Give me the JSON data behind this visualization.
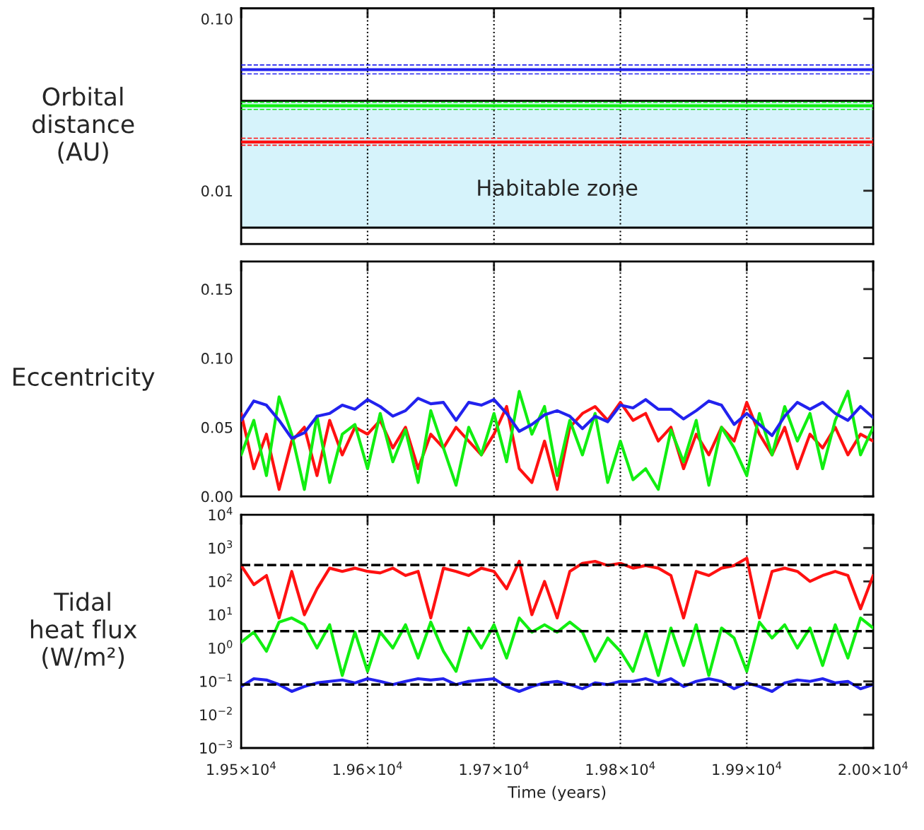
{
  "chart_data": [
    {
      "type": "line",
      "ylabel": "Orbital\ndistance\n(AU)",
      "log": "y",
      "xlim": [
        19500,
        20000
      ],
      "xticks": [
        {
          "value": 19500,
          "label": null
        },
        {
          "value": 19600,
          "label": null
        },
        {
          "value": 19700,
          "label": null
        },
        {
          "value": 19800,
          "label": null
        },
        {
          "value": 19900,
          "label": null
        },
        {
          "value": 20000,
          "label": null
        }
      ],
      "tick_labels": "y",
      "ylim": [
        0.0049,
        0.115
      ],
      "yticks": [
        0.01,
        {
          "value": 0.1,
          "label": "0.10"
        }
      ],
      "grid": false,
      "legend": false,
      "x": [
        19500,
        20000
      ],
      "series": [
        {
          "color": "#2222ee",
          "values": [
            0.0506,
            0.0506
          ],
          "line_style": "solid"
        },
        {
          "color": "#2222ee",
          "values": [
            0.0539,
            0.0539
          ],
          "line_style": "dashed"
        },
        {
          "color": "#2222ee",
          "values": [
            0.0478,
            0.0478
          ],
          "line_style": "dashed"
        },
        {
          "color": "#11ee11",
          "values": [
            0.0312,
            0.0312
          ],
          "line_style": "solid"
        },
        {
          "color": "#11ee11",
          "values": [
            0.0327,
            0.0327
          ],
          "line_style": "dashed"
        },
        {
          "color": "#11ee11",
          "values": [
            0.0297,
            0.0297
          ],
          "line_style": "dashed"
        },
        {
          "color": "#ff1111",
          "values": [
            0.0192,
            0.0192
          ],
          "line_style": "solid"
        },
        {
          "color": "#ff1111",
          "values": [
            0.0202,
            0.0202
          ],
          "line_style": "dashed"
        },
        {
          "color": "#ff1111",
          "values": [
            0.0184,
            0.0184
          ],
          "line_style": "dashed"
        }
      ],
      "bands": [
        {
          "axis": "y",
          "from": 0.0061,
          "to": 0.0333,
          "label": "Habitable zone",
          "color": "#d6f3fb"
        }
      ],
      "ref_lines": [
        {
          "axis": "x",
          "value": 19600,
          "line_style": "dotted"
        },
        {
          "axis": "x",
          "value": 19700,
          "line_style": "dotted"
        },
        {
          "axis": "x",
          "value": 19800,
          "line_style": "dotted"
        },
        {
          "axis": "x",
          "value": 19900,
          "line_style": "dotted"
        },
        {
          "axis": "y",
          "value": 0.0061,
          "line_style": "solid"
        },
        {
          "axis": "y",
          "value": 0.0333,
          "line_style": "solid"
        }
      ]
    },
    {
      "type": "line",
      "ylabel": "Eccentricity",
      "xlim": [
        19500,
        20000
      ],
      "xticks": [
        {
          "value": 19500,
          "label": null
        },
        {
          "value": 19600,
          "label": null
        },
        {
          "value": 19700,
          "label": null
        },
        {
          "value": 19800,
          "label": null
        },
        {
          "value": 19900,
          "label": null
        },
        {
          "value": 20000,
          "label": null
        }
      ],
      "tick_labels": "y",
      "ylim": [
        0,
        0.17
      ],
      "yticks": [
        {
          "value": 0,
          "label": "0.00"
        },
        {
          "value": 0.05,
          "label": "0.05"
        },
        {
          "value": 0.1,
          "label": "0.10"
        },
        {
          "value": 0.15,
          "label": "0.15"
        }
      ],
      "grid": false,
      "legend": false,
      "x": [
        19500,
        19510,
        19520,
        19530,
        19540,
        19550,
        19560,
        19570,
        19580,
        19590,
        19600,
        19610,
        19620,
        19630,
        19640,
        19650,
        19660,
        19670,
        19680,
        19690,
        19700,
        19710,
        19720,
        19730,
        19740,
        19750,
        19760,
        19770,
        19780,
        19790,
        19800,
        19810,
        19820,
        19830,
        19840,
        19850,
        19860,
        19870,
        19880,
        19890,
        19900,
        19910,
        19920,
        19930,
        19940,
        19950,
        19960,
        19970,
        19980,
        19990,
        20000
      ],
      "series": [
        {
          "color": "#ff1111",
          "line_style": "solid",
          "values": [
            0.06,
            0.02,
            0.045,
            0.005,
            0.04,
            0.05,
            0.015,
            0.055,
            0.03,
            0.05,
            0.045,
            0.055,
            0.035,
            0.05,
            0.02,
            0.045,
            0.035,
            0.05,
            0.04,
            0.03,
            0.045,
            0.065,
            0.02,
            0.01,
            0.04,
            0.005,
            0.05,
            0.06,
            0.065,
            0.055,
            0.068,
            0.055,
            0.06,
            0.04,
            0.05,
            0.02,
            0.045,
            0.03,
            0.05,
            0.04,
            0.068,
            0.045,
            0.03,
            0.05,
            0.02,
            0.045,
            0.035,
            0.05,
            0.03,
            0.045,
            0.04
          ]
        },
        {
          "color": "#11ee11",
          "line_style": "solid",
          "values": [
            0.03,
            0.055,
            0.015,
            0.072,
            0.045,
            0.005,
            0.058,
            0.01,
            0.045,
            0.052,
            0.02,
            0.06,
            0.025,
            0.048,
            0.01,
            0.062,
            0.035,
            0.008,
            0.05,
            0.03,
            0.06,
            0.025,
            0.076,
            0.045,
            0.065,
            0.015,
            0.055,
            0.03,
            0.06,
            0.01,
            0.04,
            0.012,
            0.02,
            0.005,
            0.048,
            0.025,
            0.055,
            0.008,
            0.05,
            0.035,
            0.015,
            0.06,
            0.03,
            0.065,
            0.04,
            0.06,
            0.02,
            0.055,
            0.076,
            0.03,
            0.05
          ]
        },
        {
          "color": "#2222ee",
          "line_style": "solid",
          "values": [
            0.055,
            0.069,
            0.066,
            0.055,
            0.042,
            0.046,
            0.058,
            0.06,
            0.066,
            0.063,
            0.07,
            0.065,
            0.058,
            0.062,
            0.071,
            0.067,
            0.068,
            0.055,
            0.068,
            0.066,
            0.07,
            0.06,
            0.047,
            0.052,
            0.059,
            0.062,
            0.058,
            0.049,
            0.058,
            0.054,
            0.066,
            0.064,
            0.07,
            0.063,
            0.063,
            0.056,
            0.062,
            0.069,
            0.066,
            0.052,
            0.06,
            0.052,
            0.044,
            0.058,
            0.068,
            0.063,
            0.068,
            0.06,
            0.055,
            0.065,
            0.057
          ]
        }
      ],
      "ref_lines": [
        {
          "axis": "x",
          "value": 19600,
          "line_style": "dotted"
        },
        {
          "axis": "x",
          "value": 19700,
          "line_style": "dotted"
        },
        {
          "axis": "x",
          "value": 19800,
          "line_style": "dotted"
        },
        {
          "axis": "x",
          "value": 19900,
          "line_style": "dotted"
        }
      ]
    },
    {
      "type": "line",
      "ylabel": "Tidal\nheat flux\n(W/m²)",
      "xlabel": "Time (years)",
      "log": "y",
      "xlim": [
        19500,
        20000
      ],
      "xticks": [
        {
          "value": 19500,
          "label": "1.95×10$^{4}$"
        },
        {
          "value": 19600,
          "label": "1.96×10$^{4}$"
        },
        {
          "value": 19700,
          "label": "1.97×10$^{4}$"
        },
        {
          "value": 19800,
          "label": "1.98×10$^{4}$"
        },
        {
          "value": 19900,
          "label": "1.99×10$^{4}$"
        },
        {
          "value": 20000,
          "label": "2.00×10$^{4}$"
        }
      ],
      "ylim": [
        0.001,
        10000
      ],
      "yticks": [
        {
          "value": 0.001,
          "label": "10$^{−3}$"
        },
        {
          "value": 0.01,
          "label": "10$^{−2}$"
        },
        {
          "value": 0.1,
          "label": "10$^{−1}$"
        },
        {
          "value": 1,
          "label": "10$^{0}$"
        },
        {
          "value": 10,
          "label": "10$^{1}$"
        },
        {
          "value": 100,
          "label": "10$^{2}$"
        },
        {
          "value": 1000,
          "label": "10$^{3}$"
        },
        {
          "value": 10000,
          "label": "10$^{4}$"
        }
      ],
      "grid": false,
      "legend": false,
      "x": [
        19500,
        19510,
        19520,
        19530,
        19540,
        19550,
        19560,
        19570,
        19580,
        19590,
        19600,
        19610,
        19620,
        19630,
        19640,
        19650,
        19660,
        19670,
        19680,
        19690,
        19700,
        19710,
        19720,
        19730,
        19740,
        19750,
        19760,
        19770,
        19780,
        19790,
        19800,
        19810,
        19820,
        19830,
        19840,
        19850,
        19860,
        19870,
        19880,
        19890,
        19900,
        19910,
        19920,
        19930,
        19940,
        19950,
        19960,
        19970,
        19980,
        19990,
        20000
      ],
      "series": [
        {
          "color": "#ff1111",
          "line_style": "solid",
          "values": [
            300,
            80,
            150,
            8,
            200,
            10,
            60,
            250,
            200,
            250,
            200,
            180,
            250,
            150,
            200,
            8,
            250,
            200,
            150,
            250,
            200,
            60,
            400,
            10,
            100,
            8,
            200,
            350,
            400,
            300,
            350,
            250,
            300,
            250,
            150,
            8,
            200,
            150,
            250,
            300,
            500,
            8,
            200,
            250,
            200,
            100,
            150,
            200,
            150,
            15,
            150
          ]
        },
        {
          "color": "#11ee11",
          "line_style": "solid",
          "values": [
            1.5,
            3,
            0.8,
            6,
            8,
            5,
            1,
            5,
            0.15,
            3,
            0.2,
            3,
            1,
            5,
            0.5,
            6,
            0.8,
            0.2,
            4,
            1,
            5,
            0.5,
            8,
            3,
            5,
            3,
            6,
            3,
            0.4,
            2,
            0.8,
            0.2,
            3,
            0.15,
            4,
            0.3,
            5,
            0.15,
            4,
            2,
            0.2,
            6,
            2,
            5,
            1,
            4,
            0.3,
            5,
            0.5,
            8,
            4
          ]
        },
        {
          "color": "#2222ee",
          "line_style": "solid",
          "values": [
            0.07,
            0.12,
            0.11,
            0.08,
            0.05,
            0.07,
            0.09,
            0.1,
            0.11,
            0.09,
            0.12,
            0.1,
            0.08,
            0.1,
            0.12,
            0.11,
            0.12,
            0.08,
            0.1,
            0.11,
            0.12,
            0.07,
            0.05,
            0.07,
            0.09,
            0.1,
            0.08,
            0.06,
            0.09,
            0.08,
            0.1,
            0.1,
            0.12,
            0.09,
            0.12,
            0.07,
            0.1,
            0.12,
            0.1,
            0.06,
            0.09,
            0.07,
            0.05,
            0.09,
            0.11,
            0.1,
            0.12,
            0.09,
            0.1,
            0.06,
            0.08
          ]
        }
      ],
      "ref_lines": [
        {
          "axis": "x",
          "value": 19600,
          "line_style": "dotted"
        },
        {
          "axis": "x",
          "value": 19700,
          "line_style": "dotted"
        },
        {
          "axis": "x",
          "value": 19800,
          "line_style": "dotted"
        },
        {
          "axis": "x",
          "value": 19900,
          "line_style": "dotted"
        },
        {
          "axis": "y",
          "value": 310,
          "line_style": "dashed"
        },
        {
          "axis": "y",
          "value": 3.2,
          "line_style": "dashed"
        },
        {
          "axis": "y",
          "value": 0.08,
          "line_style": "dashed"
        }
      ]
    }
  ]
}
